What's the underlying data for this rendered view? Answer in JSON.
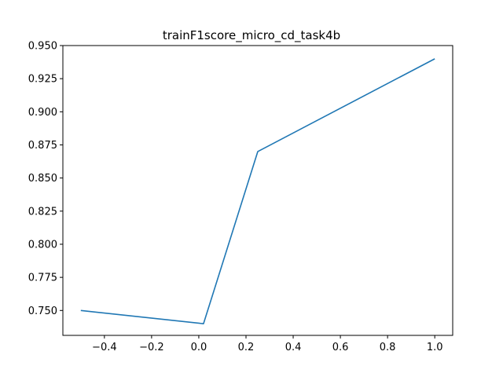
{
  "chart_data": {
    "type": "line",
    "title": "trainF1score_micro_cd_task4b",
    "xlabel": "",
    "ylabel": "",
    "xlim": [
      -0.576,
      1.076
    ],
    "ylim": [
      0.7312,
      0.95
    ],
    "xticks": [
      -0.4,
      -0.2,
      0.0,
      0.2,
      0.4,
      0.6,
      0.8,
      1.0
    ],
    "xtick_labels": [
      "−0.4",
      "−0.2",
      "0.0",
      "0.2",
      "0.4",
      "0.6",
      "0.8",
      "1.0"
    ],
    "yticks": [
      0.75,
      0.775,
      0.8,
      0.825,
      0.85,
      0.875,
      0.9,
      0.925,
      0.95
    ],
    "ytick_labels": [
      "0.750",
      "0.775",
      "0.800",
      "0.825",
      "0.850",
      "0.875",
      "0.900",
      "0.925",
      "0.950"
    ],
    "grid": false,
    "series": [
      {
        "x": [
          -0.5,
          0.02,
          0.25,
          1.0
        ],
        "y": [
          0.75,
          0.74,
          0.87,
          0.94
        ],
        "color": "#1f77b4"
      }
    ]
  }
}
